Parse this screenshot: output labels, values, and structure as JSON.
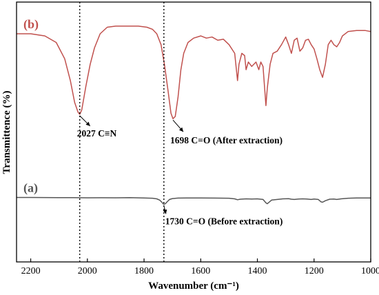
{
  "chart_data": {
    "type": "line",
    "xlabel": "Wavenumber (cm⁻¹)",
    "ylabel": "Transmittence (%)",
    "xlim": [
      2250,
      1000
    ],
    "x_reversed": true,
    "x_ticks": [
      2200,
      2000,
      1800,
      1600,
      1400,
      1200,
      1000
    ],
    "y_tick_labels_shown": false,
    "grid": false,
    "series": [
      {
        "name": "(b)",
        "color": "#c0504d",
        "points": [
          [
            2250,
            0.12
          ],
          [
            2200,
            0.12
          ],
          [
            2150,
            0.14
          ],
          [
            2110,
            0.2
          ],
          [
            2080,
            0.35
          ],
          [
            2060,
            0.55
          ],
          [
            2045,
            0.75
          ],
          [
            2033,
            0.84
          ],
          [
            2027,
            0.86
          ],
          [
            2020,
            0.82
          ],
          [
            2005,
            0.6
          ],
          [
            1990,
            0.4
          ],
          [
            1975,
            0.25
          ],
          [
            1955,
            0.12
          ],
          [
            1930,
            0.06
          ],
          [
            1900,
            0.05
          ],
          [
            1860,
            0.05
          ],
          [
            1820,
            0.05
          ],
          [
            1790,
            0.06
          ],
          [
            1770,
            0.08
          ],
          [
            1755,
            0.12
          ],
          [
            1740,
            0.22
          ],
          [
            1728,
            0.4
          ],
          [
            1715,
            0.65
          ],
          [
            1705,
            0.85
          ],
          [
            1698,
            0.9
          ],
          [
            1690,
            0.88
          ],
          [
            1680,
            0.7
          ],
          [
            1670,
            0.45
          ],
          [
            1660,
            0.3
          ],
          [
            1645,
            0.2
          ],
          [
            1625,
            0.16
          ],
          [
            1600,
            0.14
          ],
          [
            1580,
            0.16
          ],
          [
            1560,
            0.15
          ],
          [
            1540,
            0.18
          ],
          [
            1520,
            0.17
          ],
          [
            1500,
            0.22
          ],
          [
            1480,
            0.3
          ],
          [
            1470,
            0.55
          ],
          [
            1465,
            0.4
          ],
          [
            1455,
            0.3
          ],
          [
            1445,
            0.32
          ],
          [
            1440,
            0.45
          ],
          [
            1432,
            0.38
          ],
          [
            1420,
            0.42
          ],
          [
            1405,
            0.38
          ],
          [
            1395,
            0.45
          ],
          [
            1388,
            0.38
          ],
          [
            1380,
            0.42
          ],
          [
            1375,
            0.6
          ],
          [
            1370,
            0.78
          ],
          [
            1365,
            0.62
          ],
          [
            1355,
            0.4
          ],
          [
            1345,
            0.3
          ],
          [
            1330,
            0.28
          ],
          [
            1315,
            0.22
          ],
          [
            1300,
            0.15
          ],
          [
            1290,
            0.22
          ],
          [
            1280,
            0.3
          ],
          [
            1270,
            0.18
          ],
          [
            1260,
            0.16
          ],
          [
            1250,
            0.28
          ],
          [
            1240,
            0.25
          ],
          [
            1230,
            0.18
          ],
          [
            1220,
            0.17
          ],
          [
            1210,
            0.22
          ],
          [
            1200,
            0.26
          ],
          [
            1190,
            0.35
          ],
          [
            1180,
            0.45
          ],
          [
            1170,
            0.52
          ],
          [
            1160,
            0.4
          ],
          [
            1150,
            0.22
          ],
          [
            1140,
            0.18
          ],
          [
            1130,
            0.22
          ],
          [
            1120,
            0.24
          ],
          [
            1110,
            0.2
          ],
          [
            1100,
            0.14
          ],
          [
            1080,
            0.1
          ],
          [
            1050,
            0.09
          ],
          [
            1020,
            0.09
          ],
          [
            1000,
            0.1
          ]
        ]
      },
      {
        "name": "(a)",
        "color": "#555555",
        "points": [
          [
            2250,
            0.035
          ],
          [
            2200,
            0.035
          ],
          [
            2150,
            0.037
          ],
          [
            2100,
            0.04
          ],
          [
            2050,
            0.04
          ],
          [
            2000,
            0.045
          ],
          [
            1950,
            0.043
          ],
          [
            1900,
            0.045
          ],
          [
            1850,
            0.042
          ],
          [
            1800,
            0.05
          ],
          [
            1770,
            0.06
          ],
          [
            1755,
            0.08
          ],
          [
            1745,
            0.12
          ],
          [
            1738,
            0.18
          ],
          [
            1733,
            0.24
          ],
          [
            1730,
            0.26
          ],
          [
            1725,
            0.24
          ],
          [
            1718,
            0.17
          ],
          [
            1710,
            0.1
          ],
          [
            1700,
            0.07
          ],
          [
            1680,
            0.055
          ],
          [
            1650,
            0.05
          ],
          [
            1600,
            0.05
          ],
          [
            1550,
            0.055
          ],
          [
            1500,
            0.06
          ],
          [
            1480,
            0.08
          ],
          [
            1470,
            0.11
          ],
          [
            1460,
            0.09
          ],
          [
            1440,
            0.08
          ],
          [
            1420,
            0.085
          ],
          [
            1400,
            0.08
          ],
          [
            1380,
            0.1
          ],
          [
            1370,
            0.21
          ],
          [
            1365,
            0.24
          ],
          [
            1360,
            0.2
          ],
          [
            1350,
            0.12
          ],
          [
            1330,
            0.1
          ],
          [
            1310,
            0.08
          ],
          [
            1290,
            0.075
          ],
          [
            1280,
            0.09
          ],
          [
            1270,
            0.1
          ],
          [
            1255,
            0.085
          ],
          [
            1240,
            0.08
          ],
          [
            1225,
            0.085
          ],
          [
            1210,
            0.1
          ],
          [
            1200,
            0.085
          ],
          [
            1185,
            0.1
          ],
          [
            1175,
            0.18
          ],
          [
            1170,
            0.19
          ],
          [
            1160,
            0.14
          ],
          [
            1145,
            0.09
          ],
          [
            1130,
            0.085
          ],
          [
            1120,
            0.1
          ],
          [
            1105,
            0.08
          ],
          [
            1080,
            0.06
          ],
          [
            1050,
            0.05
          ],
          [
            1020,
            0.05
          ],
          [
            1000,
            0.05
          ]
        ]
      }
    ],
    "reference_lines": [
      {
        "x": 2027,
        "style": "dotted"
      },
      {
        "x": 1730,
        "style": "dotted"
      }
    ],
    "annotations": [
      {
        "text": "2027 C≡N",
        "x": 2027,
        "series": "(b)"
      },
      {
        "text": "1698 C=O (After extraction)",
        "x": 1698,
        "series": "(b)"
      },
      {
        "text": "1730 C=O (Before extraction)",
        "x": 1730,
        "series": "(a)"
      }
    ]
  }
}
